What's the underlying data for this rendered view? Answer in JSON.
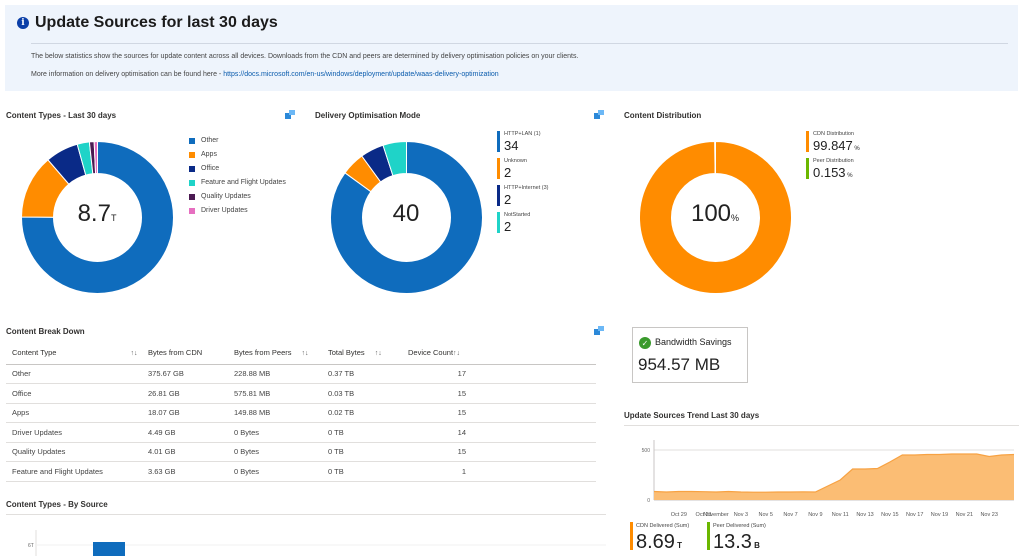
{
  "banner": {
    "title": "Update Sources for last 30 days",
    "line1": "The below statistics show the sources for update content across all devices. Downloads from the CDN and peers are determined by delivery optimisation policies on your clients.",
    "line2_prefix": "More information on delivery optimisation can be found here - ",
    "line2_link": "https://docs.microsoft.com/en-us/windows/deployment/update/waas-delivery-optimization"
  },
  "content_types": {
    "title": "Content Types - Last 30 days",
    "center_value": "8.7",
    "center_unit": "T",
    "legend": [
      {
        "label": "Other",
        "color": "#0f6cbd"
      },
      {
        "label": "Apps",
        "color": "#ff8c00"
      },
      {
        "label": "Office",
        "color": "#0a2a87"
      },
      {
        "label": "Feature and Flight Updates",
        "color": "#1fd3c8"
      },
      {
        "label": "Quality Updates",
        "color": "#4b1a52"
      },
      {
        "label": "Driver Updates",
        "color": "#e66fc0"
      }
    ]
  },
  "delivery_mode": {
    "title": "Delivery Optimisation Mode",
    "center_value": "40",
    "legend": [
      {
        "label": "HTTP+LAN (1)",
        "value": "34",
        "color": "#0f6cbd"
      },
      {
        "label": "Unknown",
        "value": "2",
        "color": "#ff8c00"
      },
      {
        "label": "HTTP+Internet (3)",
        "value": "2",
        "color": "#0a2a87"
      },
      {
        "label": "NotStarted",
        "value": "2",
        "color": "#1fd3c8"
      }
    ]
  },
  "content_distribution": {
    "title": "Content Distribution",
    "center_value": "100",
    "center_unit": "%",
    "legend": [
      {
        "label": "CDN Distribution",
        "value": "99.847",
        "unit": "%",
        "color": "#ff8c00"
      },
      {
        "label": "Peer Distribution",
        "value": "0.153",
        "unit": "%",
        "color": "#6bb700"
      }
    ]
  },
  "breakdown": {
    "title": "Content Break Down",
    "columns": [
      "Content Type",
      "Bytes from CDN",
      "Bytes from Peers",
      "Total Bytes",
      "Device Count"
    ],
    "rows": [
      [
        "Other",
        "375.67 GB",
        "228.88 MB",
        "0.37 TB",
        "17"
      ],
      [
        "Office",
        "26.81 GB",
        "575.81 MB",
        "0.03 TB",
        "15"
      ],
      [
        "Apps",
        "18.07 GB",
        "149.88 MB",
        "0.02 TB",
        "15"
      ],
      [
        "Driver Updates",
        "4.49 GB",
        "0 Bytes",
        "0 TB",
        "14"
      ],
      [
        "Quality Updates",
        "4.01 GB",
        "0 Bytes",
        "0 TB",
        "15"
      ],
      [
        "Feature and Flight Updates",
        "3.63 GB",
        "0 Bytes",
        "0 TB",
        "1"
      ]
    ]
  },
  "by_source": {
    "title": "Content Types - By Source",
    "tick_label": "6T"
  },
  "bandwidth": {
    "title": "Bandwidth Savings",
    "value": "954.57 MB"
  },
  "trend": {
    "title": "Update Sources Trend Last 30 days",
    "legend": [
      {
        "label": "CDN Delivered (Sum)",
        "value": "8.69",
        "unit": "T",
        "color": "#ff8c00"
      },
      {
        "label": "Peer Delivered (Sum)",
        "value": "13.3",
        "unit": "B",
        "color": "#6bb700"
      }
    ]
  },
  "chart_data": [
    {
      "type": "pie",
      "title": "Content Types - Last 30 days",
      "categories": [
        "Other",
        "Apps",
        "Office",
        "Feature and Flight Updates",
        "Quality Updates",
        "Driver Updates"
      ],
      "values": [
        75.1,
        13.6,
        7.0,
        2.6,
        1.0,
        0.7
      ]
    },
    {
      "type": "pie",
      "title": "Delivery Optimisation Mode",
      "categories": [
        "HTTP+LAN (1)",
        "Unknown",
        "HTTP+Internet (3)",
        "NotStarted"
      ],
      "values": [
        34,
        2,
        2,
        2
      ]
    },
    {
      "type": "pie",
      "title": "Content Distribution",
      "categories": [
        "CDN Distribution",
        "Peer Distribution"
      ],
      "values": [
        99.847,
        0.153
      ]
    },
    {
      "type": "area",
      "title": "Update Sources Trend Last 30 days",
      "x": [
        "Oct 27",
        "Oct 28",
        "Oct 29",
        "Oct 30",
        "Oct 31",
        "Nov 1",
        "Nov 2",
        "Nov 3",
        "Nov 4",
        "Nov 5",
        "Nov 6",
        "Nov 7",
        "Nov 8",
        "Nov 9",
        "Nov 10",
        "Nov 11",
        "Nov 12",
        "Nov 13",
        "Nov 14",
        "Nov 15",
        "Nov 16",
        "Nov 17",
        "Nov 18",
        "Nov 19",
        "Nov 20",
        "Nov 21",
        "Nov 22",
        "Nov 23",
        "Nov 24",
        "Nov 25"
      ],
      "x_ticks": [
        "Oct 29",
        "Oct 31",
        "November",
        "Nov 3",
        "Nov 5",
        "Nov 7",
        "Nov 9",
        "Nov 11",
        "Nov 13",
        "Nov 15",
        "Nov 17",
        "Nov 19",
        "Nov 21",
        "Nov 23"
      ],
      "ytick_labels": [
        "500",
        "0"
      ],
      "series": [
        {
          "name": "CDN Delivered (Sum)",
          "values": [
            85,
            80,
            85,
            85,
            83,
            80,
            85,
            80,
            78,
            78,
            80,
            80,
            82,
            80,
            140,
            200,
            310,
            310,
            315,
            380,
            450,
            450,
            455,
            455,
            460,
            460,
            460,
            435,
            450,
            455
          ]
        }
      ],
      "ylim": [
        0,
        600
      ]
    }
  ]
}
